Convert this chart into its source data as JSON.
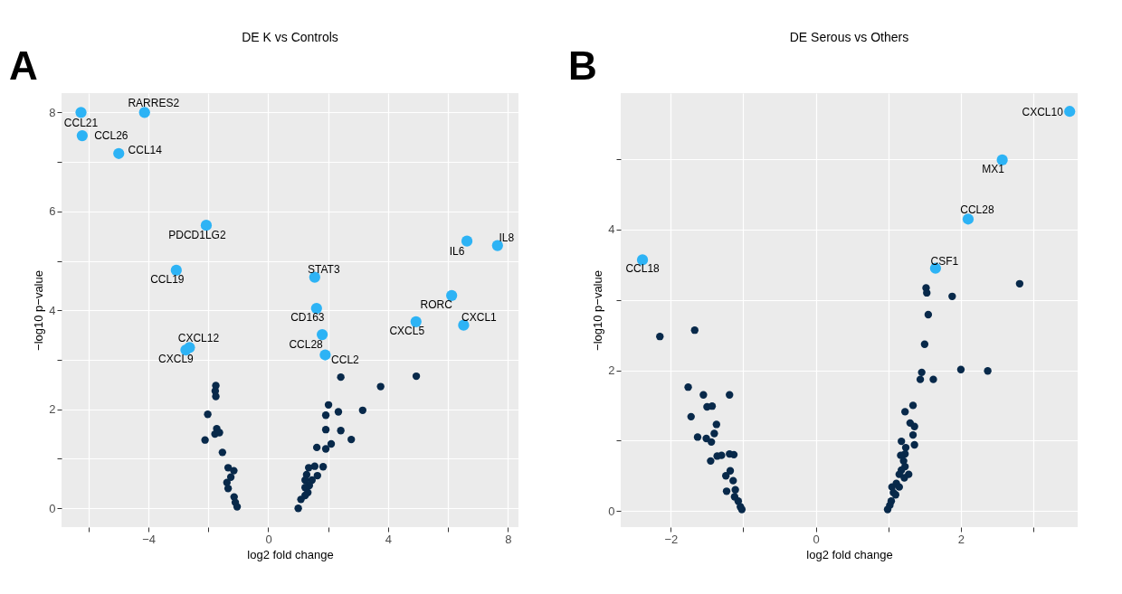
{
  "chart_data": [
    {
      "type": "scatter",
      "title": "DE K vs Controls",
      "xlabel": "log2 fold change",
      "ylabel": "−log10 p−value",
      "xlim": [
        -6.9,
        8.35
      ],
      "ylim": [
        -0.38,
        8.39
      ],
      "xticks": [
        {
          "value": -6,
          "label": null
        },
        -4,
        {
          "value": -2,
          "label": null
        },
        0,
        {
          "value": 2,
          "label": null
        },
        4,
        {
          "value": 6,
          "label": null
        },
        8
      ],
      "yticks": [
        0,
        {
          "value": 1,
          "label": null
        },
        2,
        {
          "value": 3,
          "label": null
        },
        4,
        {
          "value": 5,
          "label": null
        },
        6,
        {
          "value": 7,
          "label": null
        },
        8
      ],
      "grid": true,
      "legend": false,
      "marker": "circle",
      "series": [
        {
          "color": "#08294a",
          "x": [
            -1.75,
            -1.77,
            -1.75,
            -2.02,
            -1.72,
            -1.78,
            -1.63,
            -2.11,
            -1.53,
            -1.34,
            -1.15,
            -1.25,
            -1.38,
            -1.34,
            -1.14,
            -1.1,
            -1.04,
            2.42,
            4.94,
            3.75,
            2.01,
            1.92,
            2.34,
            3.15,
            1.92,
            2.42,
            2.77,
            1.62,
            2.1,
            1.92,
            1.83,
            1.55,
            1.35,
            1.64,
            1.28,
            1.46,
            1.23,
            1.37,
            1.23,
            1.32,
            1.23,
            1.09,
            1.0
          ],
          "values": [
            2.48,
            2.37,
            2.26,
            1.9,
            1.61,
            1.5,
            1.53,
            1.38,
            1.13,
            0.82,
            0.76,
            0.63,
            0.52,
            0.4,
            0.23,
            0.12,
            0.03,
            2.65,
            2.67,
            2.46,
            2.09,
            1.88,
            1.95,
            1.98,
            1.59,
            1.57,
            1.39,
            1.23,
            1.3,
            1.2,
            0.84,
            0.85,
            0.82,
            0.66,
            0.68,
            0.57,
            0.57,
            0.46,
            0.42,
            0.32,
            0.26,
            0.18,
            0.0
          ]
        },
        {
          "color": "#2db3f5",
          "x": [
            -6.25,
            -4.13,
            -6.21,
            -4.99,
            -2.07,
            6.63,
            7.65,
            -3.07,
            1.55,
            6.12,
            1.61,
            4.93,
            6.52,
            1.8,
            -2.63,
            -2.75,
            1.9
          ],
          "values": [
            8.0,
            8.0,
            7.53,
            7.17,
            5.72,
            5.4,
            5.31,
            4.81,
            4.67,
            4.3,
            4.04,
            3.77,
            3.7,
            3.51,
            3.25,
            3.2,
            3.1
          ]
        }
      ],
      "annotations": [
        "A",
        {
          "text": "CCL21",
          "x": -6.25,
          "y": 8.0
        },
        {
          "text": "RARRES2",
          "x": -4.13,
          "y": 8.0
        },
        {
          "text": "CCL26",
          "x": -6.21,
          "y": 7.53
        },
        {
          "text": "CCL14",
          "x": -4.99,
          "y": 7.17
        },
        {
          "text": "PDCD1LG2",
          "x": -2.07,
          "y": 5.72
        },
        {
          "text": "IL6",
          "x": 6.63,
          "y": 5.4
        },
        {
          "text": "IL8",
          "x": 7.65,
          "y": 5.31
        },
        {
          "text": "CCL19",
          "x": -3.07,
          "y": 4.81
        },
        {
          "text": "STAT3",
          "x": 1.55,
          "y": 4.67
        },
        {
          "text": "RORC",
          "x": 6.12,
          "y": 4.3
        },
        {
          "text": "CD163",
          "x": 1.61,
          "y": 4.04
        },
        {
          "text": "CXCL5",
          "x": 4.93,
          "y": 3.77
        },
        {
          "text": "CXCL1",
          "x": 6.52,
          "y": 3.7
        },
        {
          "text": "CCL28",
          "x": 1.8,
          "y": 3.51
        },
        {
          "text": "CXCL12",
          "x": -2.63,
          "y": 3.25
        },
        {
          "text": "CXCL9",
          "x": -2.75,
          "y": 3.2
        },
        {
          "text": "CCL2",
          "x": 1.9,
          "y": 3.1
        }
      ]
    },
    {
      "type": "scatter",
      "title": "DE Serous vs Others",
      "xlabel": "log2 fold change",
      "ylabel": "−log10 p−value",
      "xlim": [
        -2.69,
        3.61
      ],
      "ylim": [
        -0.23,
        5.94
      ],
      "xticks": [
        -2,
        {
          "value": -1,
          "label": null
        },
        0,
        {
          "value": 1,
          "label": null
        },
        2,
        {
          "value": 3,
          "label": null
        }
      ],
      "yticks": [
        0,
        {
          "value": 1,
          "label": null
        },
        2,
        {
          "value": 3,
          "label": null
        },
        4,
        {
          "value": 5,
          "label": null
        }
      ],
      "grid": true,
      "legend": false,
      "marker": "circle",
      "series": [
        {
          "color": "#08294a",
          "x": [
            -2.15,
            -1.67,
            -1.76,
            -1.55,
            -1.19,
            -1.5,
            -1.43,
            -1.72,
            -1.37,
            -1.4,
            -1.63,
            -1.51,
            -1.44,
            -1.36,
            -1.3,
            -1.19,
            -1.13,
            -1.45,
            -1.18,
            -1.24,
            -1.14,
            -1.23,
            -1.11,
            -1.12,
            -1.07,
            -1.04,
            -1.02,
            2.81,
            1.52,
            1.53,
            1.88,
            1.55,
            1.5,
            1.46,
            1.44,
            1.62,
            2.0,
            2.37,
            1.34,
            1.23,
            1.3,
            1.36,
            1.34,
            1.18,
            1.36,
            1.24,
            1.23,
            1.17,
            1.21,
            1.23,
            1.18,
            1.15,
            1.28,
            1.22,
            1.11,
            1.05,
            1.15,
            1.07,
            1.1,
            1.04,
            1.02,
            0.99
          ],
          "values": [
            2.48,
            2.57,
            1.76,
            1.65,
            1.65,
            1.48,
            1.49,
            1.34,
            1.23,
            1.1,
            1.05,
            1.03,
            0.98,
            0.78,
            0.79,
            0.81,
            0.8,
            0.71,
            0.57,
            0.5,
            0.43,
            0.28,
            0.3,
            0.2,
            0.14,
            0.06,
            0.02,
            3.23,
            3.17,
            3.1,
            3.05,
            2.79,
            2.37,
            1.97,
            1.87,
            1.87,
            2.01,
            1.99,
            1.5,
            1.41,
            1.25,
            1.2,
            1.08,
            0.99,
            0.94,
            0.9,
            0.81,
            0.79,
            0.71,
            0.63,
            0.58,
            0.52,
            0.52,
            0.47,
            0.39,
            0.34,
            0.34,
            0.26,
            0.23,
            0.14,
            0.08,
            0.02
          ]
        },
        {
          "color": "#2db3f5",
          "x": [
            3.5,
            2.57,
            2.1,
            1.65,
            -2.39
          ],
          "values": [
            5.68,
            4.99,
            4.15,
            3.45,
            3.57
          ]
        }
      ],
      "annotations": [
        "B",
        {
          "text": "CXCL10",
          "x": 3.5,
          "y": 5.68
        },
        {
          "text": "MX1",
          "x": 2.57,
          "y": 4.99
        },
        {
          "text": "CCL28",
          "x": 2.1,
          "y": 4.15
        },
        {
          "text": "CSF1",
          "x": 1.65,
          "y": 3.45
        },
        {
          "text": "CCL18",
          "x": -2.39,
          "y": 3.57
        }
      ]
    }
  ]
}
